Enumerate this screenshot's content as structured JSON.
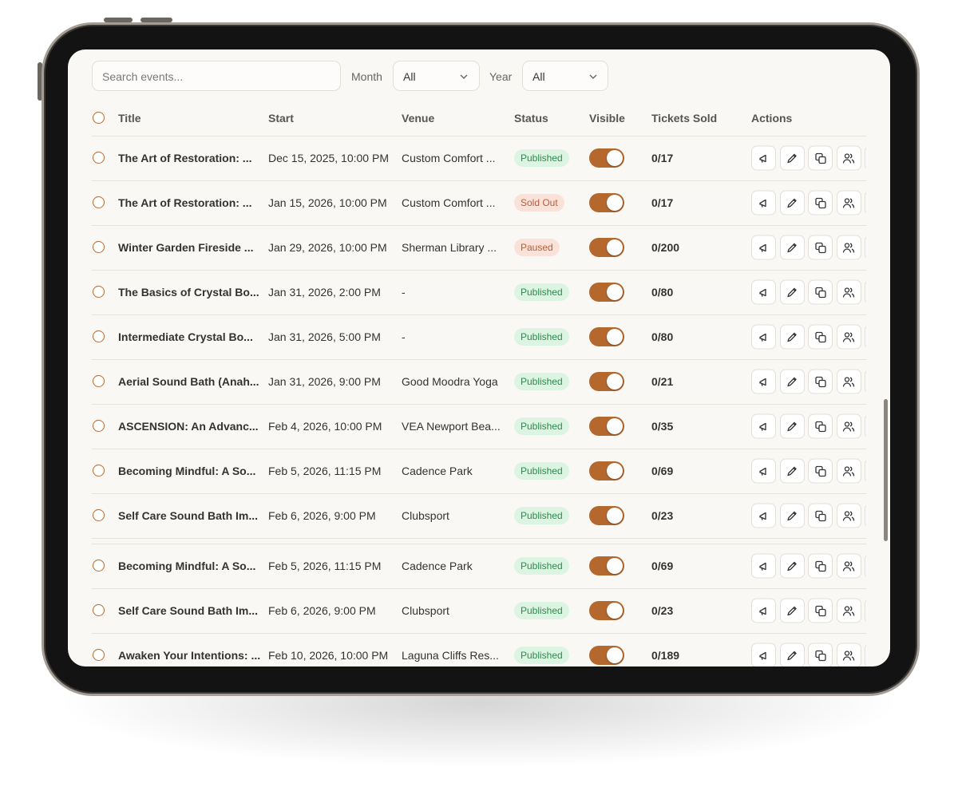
{
  "filters": {
    "search_placeholder": "Search events...",
    "month_label": "Month",
    "month_value": "All",
    "year_label": "Year",
    "year_value": "All"
  },
  "table": {
    "headers": [
      "Title",
      "Start",
      "Venue",
      "Status",
      "Visible",
      "Tickets Sold",
      "Actions"
    ],
    "rows": [
      {
        "title": "The Art of Restoration: ...",
        "start": "Dec 15, 2025, 10:00 PM",
        "venue": "Custom Comfort ...",
        "status": "Published",
        "tickets": "0/17"
      },
      {
        "title": "The Art of Restoration: ...",
        "start": "Jan 15, 2026, 10:00 PM",
        "venue": "Custom Comfort ...",
        "status": "Sold Out",
        "tickets": "0/17"
      },
      {
        "title": "Winter Garden Fireside ...",
        "start": "Jan 29, 2026, 10:00 PM",
        "venue": "Sherman Library ...",
        "status": "Paused",
        "tickets": "0/200"
      },
      {
        "title": "The Basics of Crystal Bo...",
        "start": "Jan 31, 2026, 2:00 PM",
        "venue": "-",
        "status": "Published",
        "tickets": "0/80"
      },
      {
        "title": "Intermediate Crystal Bo...",
        "start": "Jan 31, 2026, 5:00 PM",
        "venue": "-",
        "status": "Published",
        "tickets": "0/80"
      },
      {
        "title": "Aerial Sound Bath (Anah...",
        "start": "Jan 31, 2026, 9:00 PM",
        "venue": "Good Moodra Yoga",
        "status": "Published",
        "tickets": "0/21"
      },
      {
        "title": "ASCENSION: An Advanc...",
        "start": "Feb 4, 2026, 10:00 PM",
        "venue": "VEA Newport Bea...",
        "status": "Published",
        "tickets": "0/35"
      },
      {
        "title": "Becoming Mindful: A So...",
        "start": "Feb 5, 2026, 11:15 PM",
        "venue": "Cadence Park",
        "status": "Published",
        "tickets": "0/69"
      },
      {
        "title": "Self Care Sound Bath Im...",
        "start": "Feb 6, 2026, 9:00 PM",
        "venue": "Clubsport",
        "status": "Published",
        "tickets": "0/23"
      },
      {
        "title": "Becoming Mindful: A So...",
        "start": "Feb 5, 2026, 11:15 PM",
        "venue": "Cadence Park",
        "status": "Published",
        "tickets": "0/69"
      },
      {
        "title": "Self Care Sound Bath Im...",
        "start": "Feb 6, 2026, 9:00 PM",
        "venue": "Clubsport",
        "status": "Published",
        "tickets": "0/23"
      },
      {
        "title": "Awaken Your Intentions: ...",
        "start": "Feb 10, 2026, 10:00 PM",
        "venue": "Laguna Cliffs Res...",
        "status": "Published",
        "tickets": "0/189"
      }
    ]
  },
  "badge_styles": {
    "Published": {
      "bg": "#dcf5e2",
      "fg": "#2e8a4c"
    },
    "Sold Out": {
      "bg": "#fbe2d8",
      "fg": "#b4603c"
    },
    "Paused": {
      "bg": "#fbe2d8",
      "fg": "#b4603c"
    }
  },
  "accent_color": "#b4682e"
}
